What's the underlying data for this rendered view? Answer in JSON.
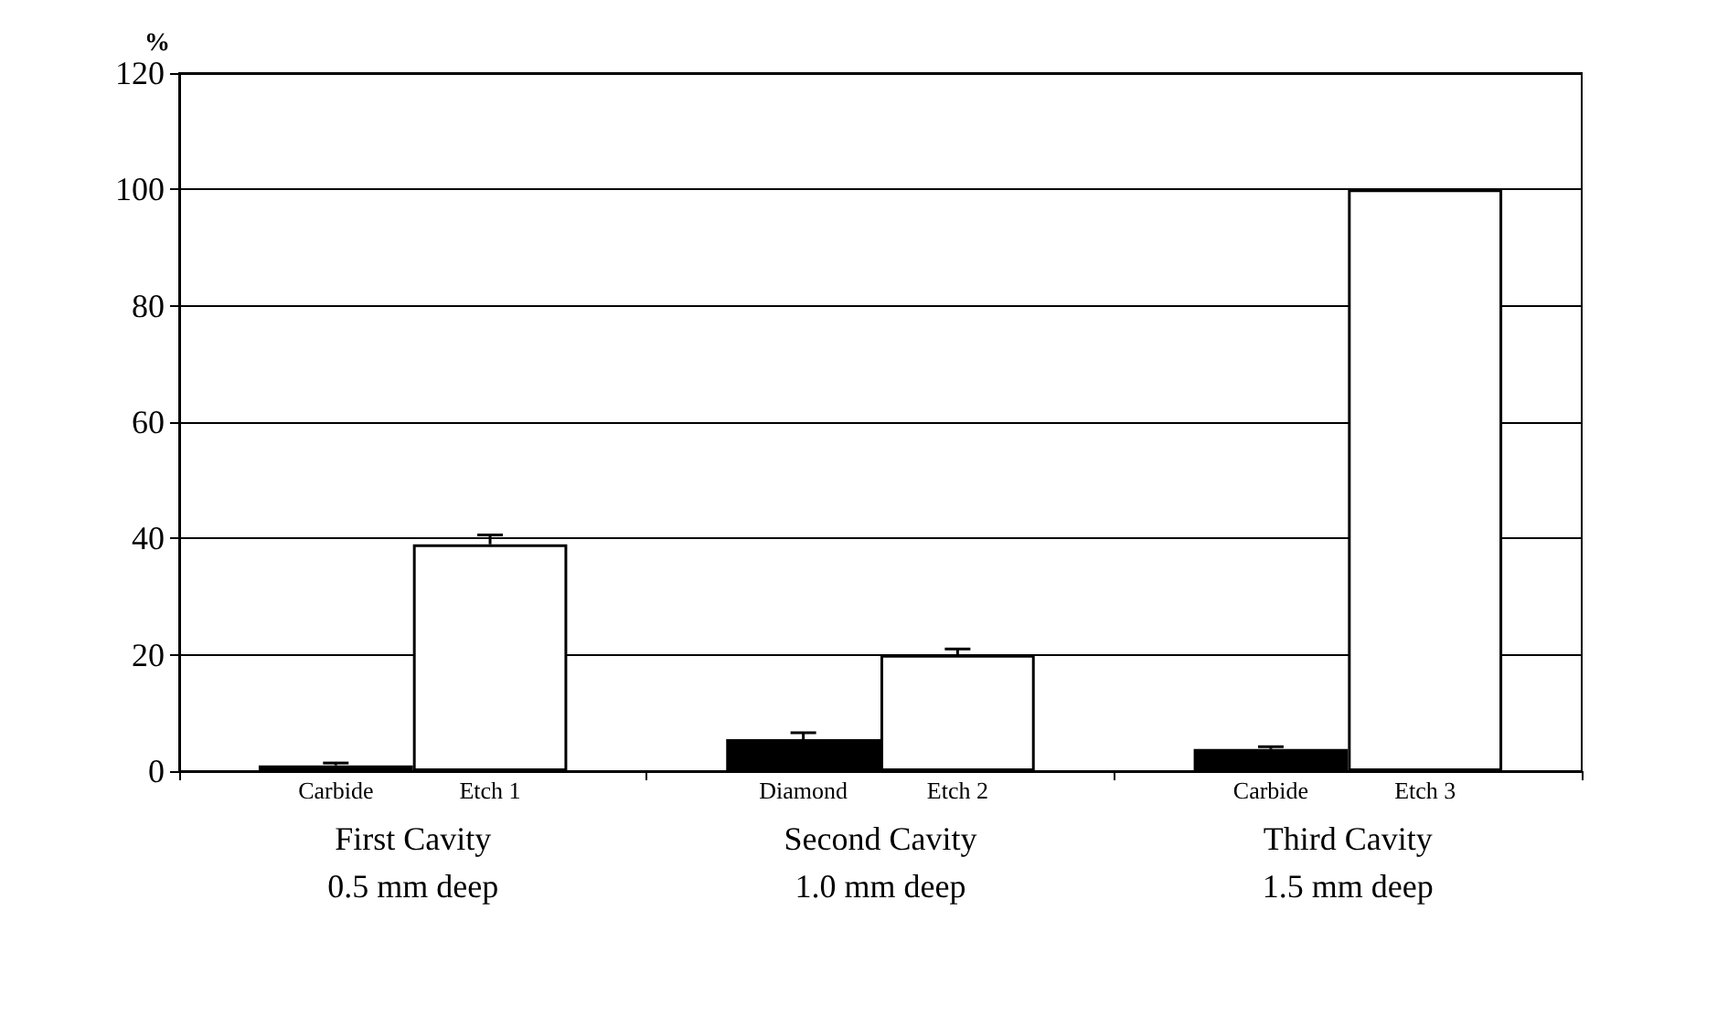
{
  "chart_data": {
    "type": "bar",
    "ylabel": "%",
    "categories": [
      "First Cavity\n0.5 mm deep",
      "Second Cavity\n1.0 mm deep",
      "Third Cavity\n1.5 mm deep"
    ],
    "series": [
      {
        "color": "#000000",
        "values": [
          1,
          5.5,
          3.8
        ],
        "errors": [
          [
            1,
            1.4
          ],
          [
            5.5,
            6.6
          ],
          [
            3.8,
            4.2
          ]
        ]
      },
      {
        "color": "#ffffff",
        "values": [
          39,
          20,
          100
        ],
        "errors": [
          [
            39,
            40.6
          ],
          [
            20,
            21
          ],
          null
        ]
      }
    ],
    "annotations": [
      "Carbide",
      "Etch 1",
      "Diamond",
      "Etch 2",
      "Carbide",
      "Etch 3"
    ],
    "ylim": [
      0,
      120
    ],
    "yticks": [
      0,
      20,
      40,
      60,
      80,
      100,
      120
    ],
    "grid": "y"
  }
}
